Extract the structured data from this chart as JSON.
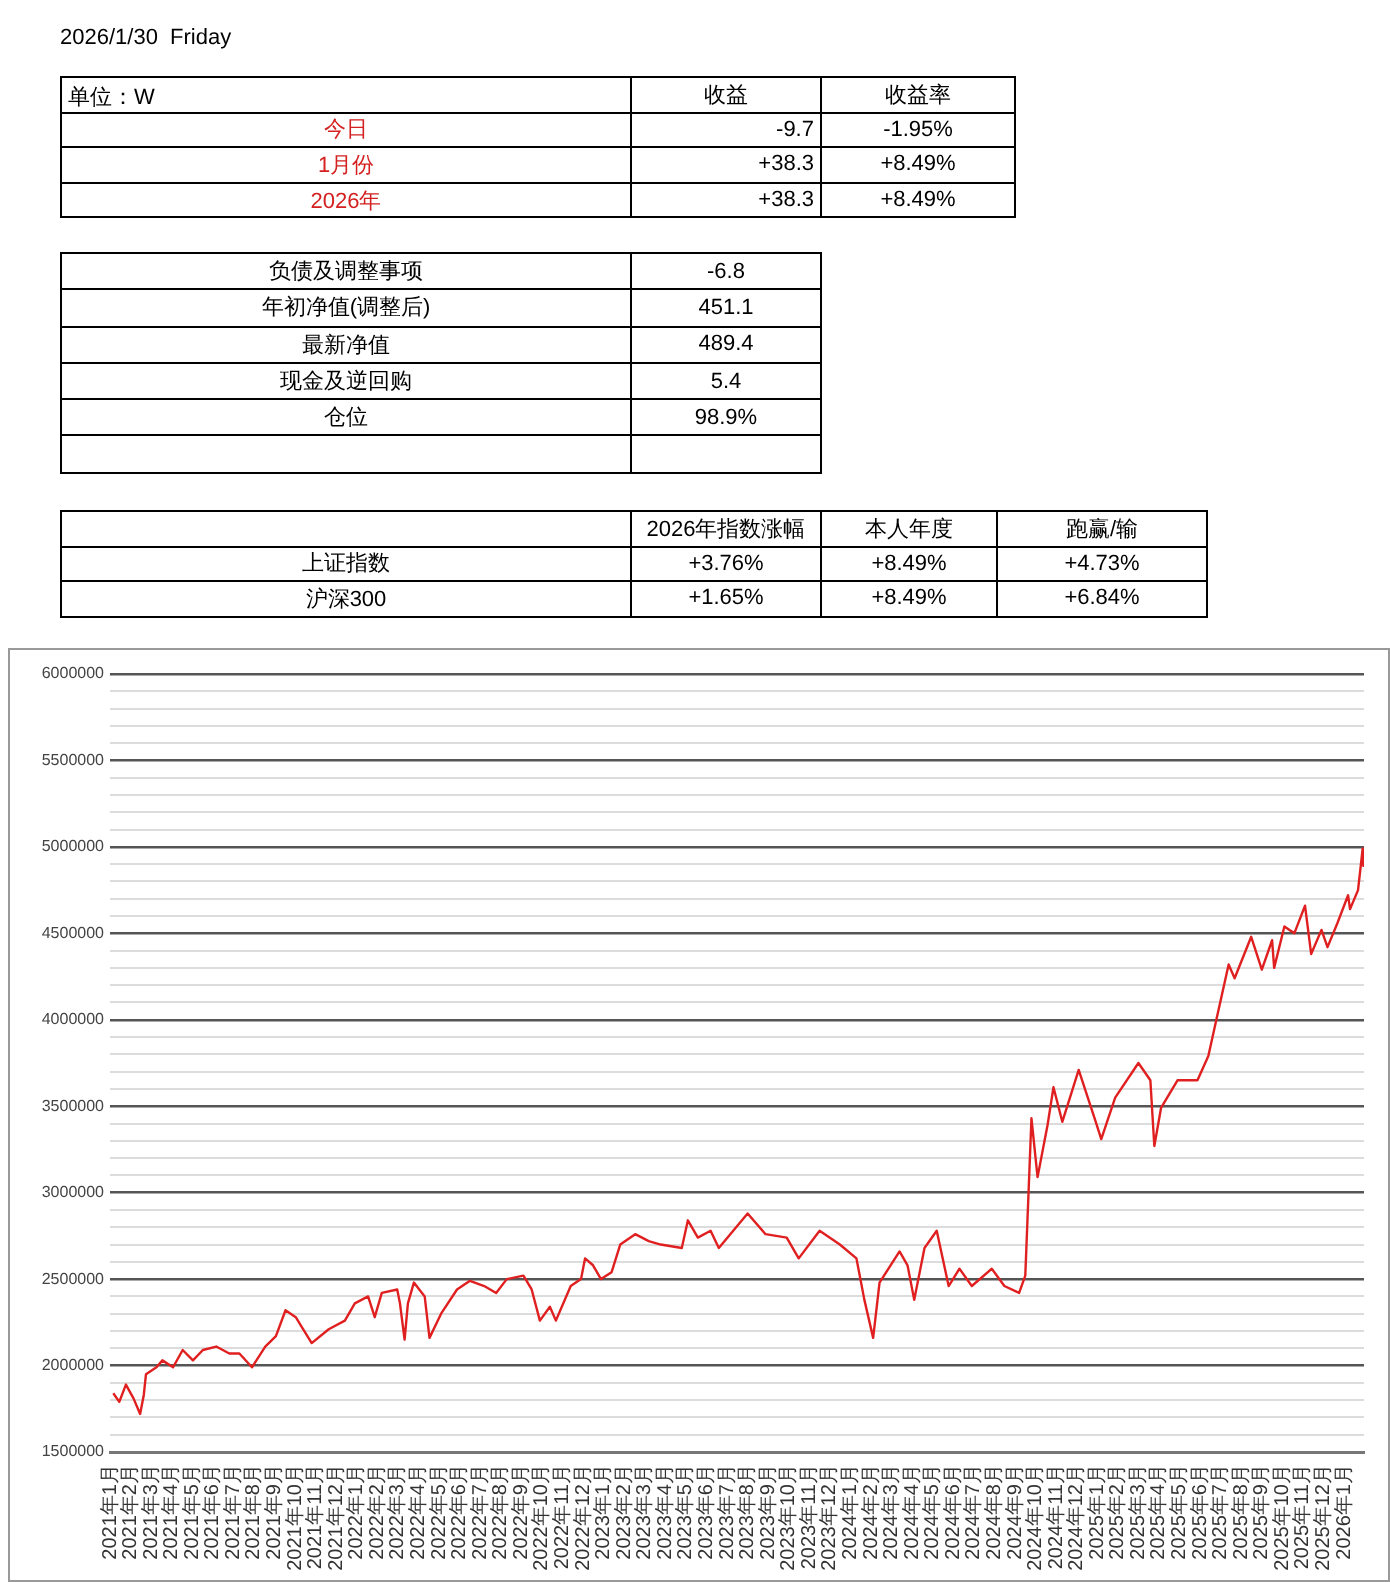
{
  "chart_data": [
    {
      "type": "other",
      "title": "2026/1/30  Friday",
      "subtitle": "单位：W",
      "categories": [
        "今日",
        "1月份",
        "2026年"
      ],
      "colors": [
        "#d42020",
        "#d42020",
        "#d42020"
      ],
      "series": [
        {
          "name": "收益",
          "values": [
            -9.7,
            38.3,
            38.3
          ],
          "value_labels": [
            "-9.7",
            "+38.3",
            "+38.3"
          ]
        },
        {
          "name": "收益率",
          "values": [
            -1.95,
            8.49,
            8.49
          ],
          "value_labels": [
            "-1.95%",
            "+8.49%",
            "+8.49%"
          ]
        }
      ]
    },
    {
      "type": "other",
      "categories": [
        "负债及调整事项",
        "年初净值(调整后)",
        "最新净值",
        "现金及逆回购",
        "仓位",
        null
      ],
      "series": [
        {
          "values": [
            -6.8,
            451.1,
            489.4,
            5.4,
            98.9,
            null
          ],
          "value_labels": [
            "-6.8",
            "451.1",
            "489.4",
            "5.4",
            "98.9%",
            null
          ]
        }
      ]
    },
    {
      "type": "other",
      "categories": [
        "上证指数",
        "沪深300"
      ],
      "series": [
        {
          "name": "2026年指数涨幅",
          "values": [
            3.76,
            1.65
          ],
          "value_labels": [
            "+3.76%",
            "+1.65%"
          ]
        },
        {
          "name": "本人年度",
          "values": [
            8.49,
            8.49
          ],
          "value_labels": [
            "+8.49%",
            "+8.49%"
          ]
        },
        {
          "name": "跑赢/输",
          "values": [
            4.73,
            6.84
          ],
          "value_labels": [
            "+4.73%",
            "+6.84%"
          ]
        }
      ]
    },
    {
      "type": "line",
      "marker": "none",
      "grid": "y",
      "xlim": [
        "2021-01-01",
        "2026-01-31"
      ],
      "ylim": [
        1500000,
        6000000
      ],
      "yticks": [
        1500000,
        {
          "value": 1600000,
          "label": null
        },
        {
          "value": 1700000,
          "label": null
        },
        {
          "value": 1800000,
          "label": null
        },
        {
          "value": 1900000,
          "label": null
        },
        2000000,
        {
          "value": 2100000,
          "label": null
        },
        {
          "value": 2200000,
          "label": null
        },
        {
          "value": 2300000,
          "label": null
        },
        {
          "value": 2400000,
          "label": null
        },
        2500000,
        {
          "value": 2600000,
          "label": null
        },
        {
          "value": 2700000,
          "label": null
        },
        {
          "value": 2800000,
          "label": null
        },
        {
          "value": 2900000,
          "label": null
        },
        3000000,
        {
          "value": 3100000,
          "label": null
        },
        {
          "value": 3200000,
          "label": null
        },
        {
          "value": 3300000,
          "label": null
        },
        {
          "value": 3400000,
          "label": null
        },
        3500000,
        {
          "value": 3600000,
          "label": null
        },
        {
          "value": 3700000,
          "label": null
        },
        {
          "value": 3800000,
          "label": null
        },
        {
          "value": 3900000,
          "label": null
        },
        4000000,
        {
          "value": 4100000,
          "label": null
        },
        {
          "value": 4200000,
          "label": null
        },
        {
          "value": 4300000,
          "label": null
        },
        {
          "value": 4400000,
          "label": null
        },
        4500000,
        {
          "value": 4600000,
          "label": null
        },
        {
          "value": 4700000,
          "label": null
        },
        {
          "value": 4800000,
          "label": null
        },
        {
          "value": 4900000,
          "label": null
        },
        5000000,
        {
          "value": 5100000,
          "label": null
        },
        {
          "value": 5200000,
          "label": null
        },
        {
          "value": 5300000,
          "label": null
        },
        {
          "value": 5400000,
          "label": null
        },
        5500000,
        {
          "value": 5600000,
          "label": null
        },
        {
          "value": 5700000,
          "label": null
        },
        {
          "value": 5800000,
          "label": null
        },
        {
          "value": 5900000,
          "label": null
        },
        6000000
      ],
      "xticks": [
        {
          "value": "2021-01",
          "label": "2021年1月"
        },
        {
          "value": "2021-02",
          "label": "2021年2月"
        },
        {
          "value": "2021-03",
          "label": "2021年3月"
        },
        {
          "value": "2021-04",
          "label": "2021年4月"
        },
        {
          "value": "2021-05",
          "label": "2021年5月"
        },
        {
          "value": "2021-06",
          "label": "2021年6月"
        },
        {
          "value": "2021-07",
          "label": "2021年7月"
        },
        {
          "value": "2021-08",
          "label": "2021年8月"
        },
        {
          "value": "2021-09",
          "label": "2021年9月"
        },
        {
          "value": "2021-10",
          "label": "2021年10月"
        },
        {
          "value": "2021-11",
          "label": "2021年11月"
        },
        {
          "value": "2021-12",
          "label": "2021年12月"
        },
        {
          "value": "2022-01",
          "label": "2022年1月"
        },
        {
          "value": "2022-02",
          "label": "2022年2月"
        },
        {
          "value": "2022-03",
          "label": "2022年3月"
        },
        {
          "value": "2022-04",
          "label": "2022年4月"
        },
        {
          "value": "2022-05",
          "label": "2022年5月"
        },
        {
          "value": "2022-06",
          "label": "2022年6月"
        },
        {
          "value": "2022-07",
          "label": "2022年7月"
        },
        {
          "value": "2022-08",
          "label": "2022年8月"
        },
        {
          "value": "2022-09",
          "label": "2022年9月"
        },
        {
          "value": "2022-10",
          "label": "2022年10月"
        },
        {
          "value": "2022-11",
          "label": "2022年11月"
        },
        {
          "value": "2022-12",
          "label": "2022年12月"
        },
        {
          "value": "2023-01",
          "label": "2023年1月"
        },
        {
          "value": "2023-02",
          "label": "2023年2月"
        },
        {
          "value": "2023-03",
          "label": "2023年3月"
        },
        {
          "value": "2023-04",
          "label": "2023年4月"
        },
        {
          "value": "2023-05",
          "label": "2023年5月"
        },
        {
          "value": "2023-06",
          "label": "2023年6月"
        },
        {
          "value": "2023-07",
          "label": "2023年7月"
        },
        {
          "value": "2023-08",
          "label": "2023年8月"
        },
        {
          "value": "2023-09",
          "label": "2023年9月"
        },
        {
          "value": "2023-10",
          "label": "2023年10月"
        },
        {
          "value": "2023-11",
          "label": "2023年11月"
        },
        {
          "value": "2023-12",
          "label": "2023年12月"
        },
        {
          "value": "2024-01",
          "label": "2024年1月"
        },
        {
          "value": "2024-02",
          "label": "2024年2月"
        },
        {
          "value": "2024-03",
          "label": "2024年3月"
        },
        {
          "value": "2024-04",
          "label": "2024年4月"
        },
        {
          "value": "2024-05",
          "label": "2024年5月"
        },
        {
          "value": "2024-06",
          "label": "2024年6月"
        },
        {
          "value": "2024-07",
          "label": "2024年7月"
        },
        {
          "value": "2024-08",
          "label": "2024年8月"
        },
        {
          "value": "2024-09",
          "label": "2024年9月"
        },
        {
          "value": "2024-10",
          "label": "2024年10月"
        },
        {
          "value": "2024-11",
          "label": "2024年11月"
        },
        {
          "value": "2024-12",
          "label": "2024年12月"
        },
        {
          "value": "2025-01",
          "label": "2025年1月"
        },
        {
          "value": "2025-02",
          "label": "2025年2月"
        },
        {
          "value": "2025-03",
          "label": "2025年3月"
        },
        {
          "value": "2025-04",
          "label": "2025年4月"
        },
        {
          "value": "2025-05",
          "label": "2025年5月"
        },
        {
          "value": "2025-06",
          "label": "2025年6月"
        },
        {
          "value": "2025-07",
          "label": "2025年7月"
        },
        {
          "value": "2025-08",
          "label": "2025年8月"
        },
        {
          "value": "2025-09",
          "label": "2025年9月"
        },
        {
          "value": "2025-10",
          "label": "2025年10月"
        },
        {
          "value": "2025-11",
          "label": "2025年11月"
        },
        {
          "value": "2025-12",
          "label": "2025年12月"
        },
        {
          "value": "2026-01",
          "label": "2026年1月"
        }
      ],
      "series": [
        {
          "color": "#e02020",
          "x": [
            "2021-01-06",
            "2021-01-15",
            "2021-01-25",
            "2021-02-05",
            "2021-02-14",
            "2021-02-19",
            "2021-02-22",
            "2021-03-09",
            "2021-03-18",
            "2021-04-03",
            "2021-04-17",
            "2021-05-02",
            "2021-05-17",
            "2021-06-06",
            "2021-06-25",
            "2021-07-10",
            "2021-07-29",
            "2021-08-18",
            "2021-09-03",
            "2021-09-17",
            "2021-10-02",
            "2021-10-10",
            "2021-10-26",
            "2021-11-20",
            "2021-12-14",
            "2021-12-29",
            "2022-01-18",
            "2022-01-28",
            "2022-02-07",
            "2022-02-28",
            "2022-03-04",
            "2022-03-11",
            "2022-03-16",
            "2022-03-25",
            "2022-04-10",
            "2022-04-17",
            "2022-05-04",
            "2022-05-28",
            "2022-06-16",
            "2022-07-07",
            "2022-07-25",
            "2022-08-10",
            "2022-09-04",
            "2022-09-16",
            "2022-09-28",
            "2022-10-13",
            "2022-10-22",
            "2022-11-13",
            "2022-11-28",
            "2022-12-04",
            "2022-12-16",
            "2022-12-28",
            "2023-01-13",
            "2023-01-26",
            "2023-02-16",
            "2023-03-07",
            "2023-03-25",
            "2023-04-25",
            "2023-05-04",
            "2023-05-19",
            "2023-06-07",
            "2023-06-19",
            "2023-08-01",
            "2023-08-28",
            "2023-09-28",
            "2023-10-16",
            "2023-11-16",
            "2023-12-16",
            "2024-01-10",
            "2024-01-22",
            "2024-02-04",
            "2024-02-13",
            "2024-03-13",
            "2024-03-25",
            "2024-04-04",
            "2024-04-19",
            "2024-05-07",
            "2024-05-25",
            "2024-06-10",
            "2024-06-28",
            "2024-07-28",
            "2024-08-16",
            "2024-09-07",
            "2024-09-16",
            "2024-09-25",
            "2024-10-04",
            "2024-10-19",
            "2024-10-28",
            "2024-11-10",
            "2024-12-04",
            "2024-12-28",
            "2025-01-07",
            "2025-01-28",
            "2025-03-01",
            "2025-03-19",
            "2025-03-25",
            "2025-04-04",
            "2025-04-28",
            "2025-05-28",
            "2025-06-13",
            "2025-06-28",
            "2025-07-13",
            "2025-07-22",
            "2025-08-16",
            "2025-09-01",
            "2025-09-16",
            "2025-09-19",
            "2025-10-04",
            "2025-10-19",
            "2025-11-04",
            "2025-11-13",
            "2025-11-28",
            "2025-12-07",
            "2025-12-22",
            "2026-01-07",
            "2026-01-10",
            "2026-01-22",
            "2026-01-29",
            "2026-01-30"
          ],
          "values": [
            1840000,
            1790000,
            1890000,
            1810000,
            1720000,
            1830000,
            1950000,
            1990000,
            2030000,
            1990000,
            2090000,
            2030000,
            2090000,
            2110000,
            2070000,
            2070000,
            1990000,
            2110000,
            2170000,
            2320000,
            2280000,
            2230000,
            2130000,
            2210000,
            2260000,
            2360000,
            2400000,
            2280000,
            2420000,
            2440000,
            2360000,
            2150000,
            2360000,
            2480000,
            2400000,
            2160000,
            2300000,
            2440000,
            2490000,
            2460000,
            2420000,
            2500000,
            2520000,
            2440000,
            2260000,
            2340000,
            2260000,
            2460000,
            2500000,
            2620000,
            2580000,
            2500000,
            2540000,
            2700000,
            2760000,
            2720000,
            2700000,
            2680000,
            2840000,
            2740000,
            2780000,
            2680000,
            2880000,
            2760000,
            2740000,
            2620000,
            2780000,
            2700000,
            2620000,
            2380000,
            2160000,
            2480000,
            2660000,
            2580000,
            2380000,
            2680000,
            2780000,
            2460000,
            2560000,
            2460000,
            2560000,
            2460000,
            2420000,
            2520000,
            3430000,
            3090000,
            3390000,
            3610000,
            3410000,
            3710000,
            3430000,
            3310000,
            3550000,
            3750000,
            3650000,
            3270000,
            3490000,
            3650000,
            3650000,
            3790000,
            4060000,
            4320000,
            4240000,
            4480000,
            4290000,
            4460000,
            4300000,
            4540000,
            4500000,
            4660000,
            4380000,
            4520000,
            4420000,
            4560000,
            4720000,
            4640000,
            4750000,
            4990000,
            4890000
          ]
        }
      ]
    }
  ]
}
